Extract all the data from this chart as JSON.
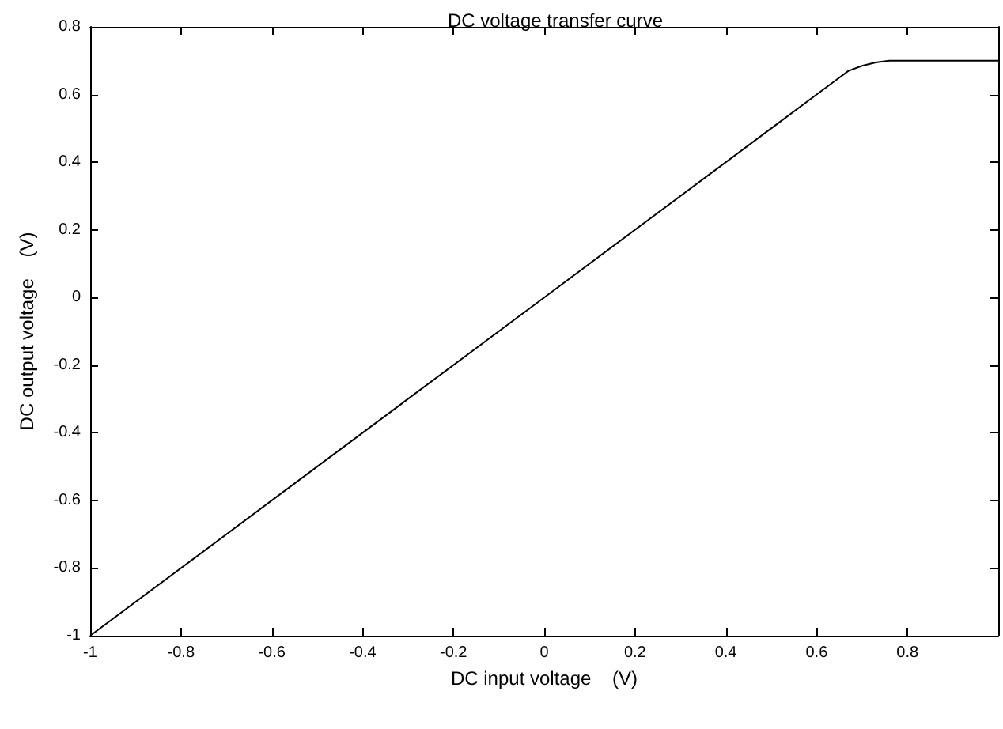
{
  "chart_data": {
    "type": "line",
    "title": "DC voltage transfer curve",
    "xlabel": "DC input voltage    (V)",
    "ylabel": "DC output voltage    (V)",
    "x": [
      -1,
      -0.5,
      0,
      0.5,
      0.6,
      0.64,
      0.67,
      0.7,
      0.73,
      0.76,
      0.8,
      1
    ],
    "series": [
      {
        "color": "#000000",
        "values": [
          -1,
          -0.5,
          0,
          0.5,
          0.6,
          0.64,
          0.67,
          0.685,
          0.695,
          0.7,
          0.7,
          0.7
        ]
      }
    ],
    "xlim": [
      -1,
      1
    ],
    "xticks": [
      -1,
      -0.8,
      -0.6,
      -0.4,
      -0.2,
      0,
      0.2,
      0.4,
      0.6,
      0.8,
      {
        "value": 1,
        "label": null
      }
    ],
    "ylim": [
      -1,
      0.8
    ],
    "yticks": [
      -1,
      -0.8,
      -0.6,
      -0.4,
      -0.2,
      0,
      0.2,
      0.4,
      0.6,
      0.8
    ],
    "grid": false,
    "marker": "none",
    "line_style": "solid"
  }
}
